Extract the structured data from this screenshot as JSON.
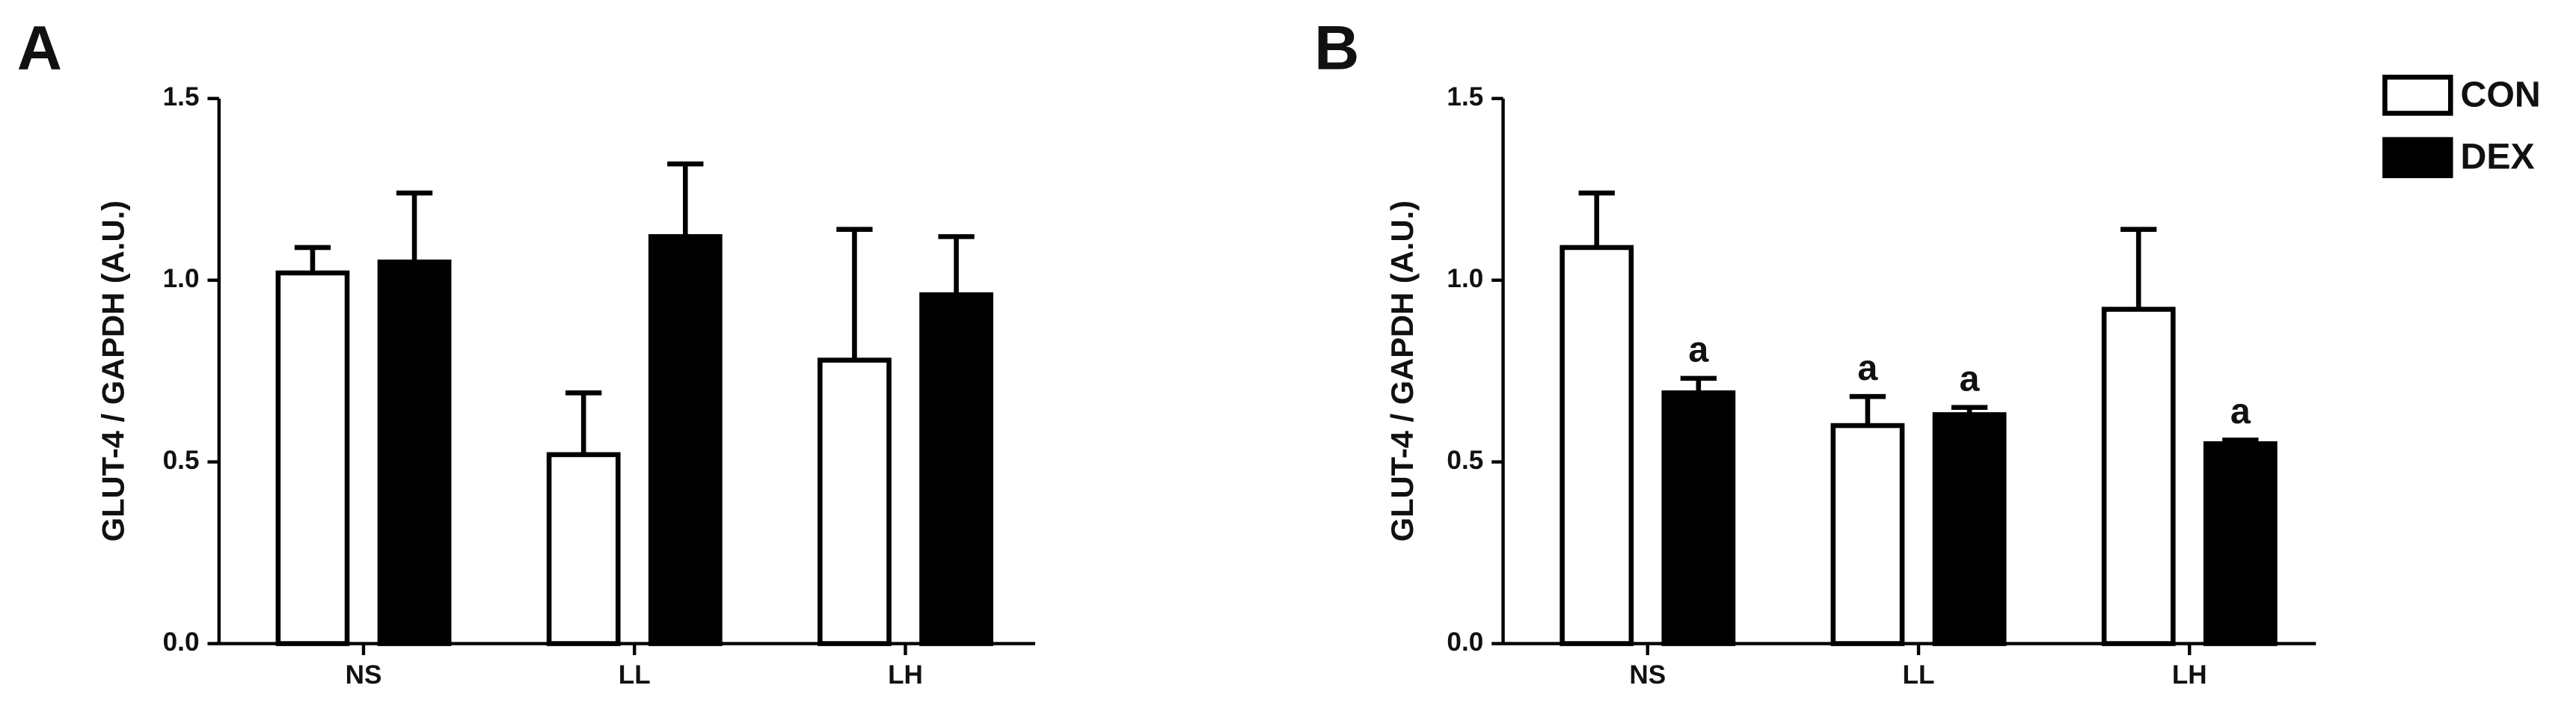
{
  "chart_data": [
    {
      "type": "bar",
      "panel_label": "A",
      "y_label": "GLUT-4 / GAPDH (A.U.)",
      "categories": [
        "NS",
        "LL",
        "LH"
      ],
      "series": [
        {
          "color": "#ffffff",
          "values": [
            1.02,
            0.52,
            0.78
          ],
          "errors": [
            0.07,
            0.17,
            0.36
          ]
        },
        {
          "color": "#000000",
          "values": [
            1.05,
            1.12,
            0.96
          ],
          "errors": [
            0.19,
            0.2,
            0.16
          ]
        }
      ],
      "edge_color": "#000000",
      "ylim": [
        0,
        1.5
      ],
      "yticks": [
        {
          "value": 0,
          "label": "0.0"
        },
        {
          "value": 0.5,
          "label": "0.5"
        },
        {
          "value": 1,
          "label": "1.0"
        },
        {
          "value": 1.5,
          "label": "1.5"
        }
      ]
    },
    {
      "type": "bar",
      "panel_label": "B",
      "y_label": "GLUT-4 / GAPDH (A.U.)",
      "categories": [
        "NS",
        "LL",
        "LH"
      ],
      "series": [
        {
          "name": "CON",
          "color": "#ffffff",
          "values": [
            1.09,
            0.6,
            0.92
          ],
          "errors": [
            0.15,
            0.08,
            0.22
          ],
          "annotations": [
            null,
            "a",
            null
          ]
        },
        {
          "name": "DEX",
          "color": "#000000",
          "values": [
            0.69,
            0.63,
            0.55
          ],
          "errors": [
            0.04,
            0.02,
            0.01
          ],
          "annotations": [
            "a",
            "a",
            "a"
          ]
        }
      ],
      "edge_color": "#000000",
      "ylim": [
        0,
        1.5
      ],
      "yticks": [
        {
          "value": 0,
          "label": "0.0"
        },
        {
          "value": 0.5,
          "label": "0.5"
        },
        {
          "value": 1,
          "label": "1.0"
        },
        {
          "value": 1.5,
          "label": "1.5"
        }
      ],
      "legend": "upper right"
    }
  ]
}
